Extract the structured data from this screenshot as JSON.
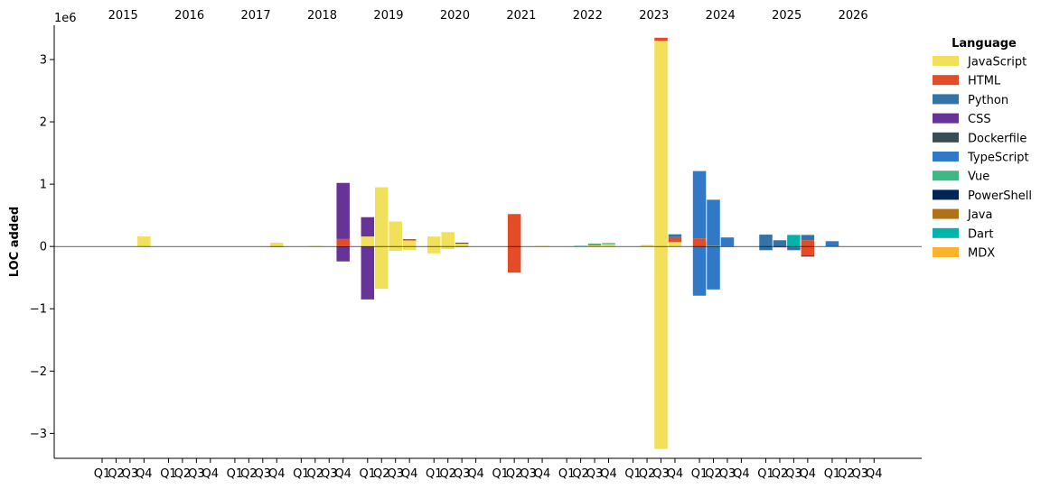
{
  "chart_data": {
    "type": "bar",
    "stacked": true,
    "diverging": true,
    "title": "",
    "xlabel": "",
    "ylabel": "LOC added",
    "y_offset_label": "1e6",
    "ylim": [
      -3400000,
      3550000
    ],
    "yticks": [
      -3000000,
      -2000000,
      -1000000,
      0,
      1000000,
      2000000,
      3000000
    ],
    "ytick_labels": [
      "−3",
      "−2",
      "−1",
      "0",
      "1",
      "2",
      "3"
    ],
    "years": [
      "2015",
      "2016",
      "2017",
      "2018",
      "2019",
      "2020",
      "2021",
      "2022",
      "2023",
      "2024",
      "2025",
      "2026"
    ],
    "quarters": [
      "Q1",
      "Q2",
      "Q3",
      "Q4"
    ],
    "legend": {
      "title": "Language",
      "position": "right",
      "entries": [
        "JavaScript",
        "HTML",
        "Python",
        "CSS",
        "Dockerfile",
        "TypeScript",
        "Vue",
        "PowerShell",
        "Java",
        "Dart",
        "MDX"
      ]
    },
    "colors": {
      "JavaScript": "#f1e05a",
      "HTML": "#e34c26",
      "Python": "#3572a5",
      "CSS": "#663399",
      "Dockerfile": "#384d54",
      "TypeScript": "#3178c6",
      "Vue": "#41b883",
      "PowerShell": "#012456",
      "Java": "#b07219",
      "Dart": "#00b4ab",
      "MDX": "#fcb32c"
    },
    "bars": [
      {
        "period": "2015 Q4",
        "pos": [
          [
            "JavaScript",
            160000
          ]
        ],
        "neg": []
      },
      {
        "period": "2017 Q4",
        "pos": [
          [
            "JavaScript",
            60000
          ]
        ],
        "neg": [
          [
            "JavaScript",
            8000
          ]
        ]
      },
      {
        "period": "2018 Q2",
        "pos": [
          [
            "JavaScript",
            8000
          ]
        ],
        "neg": []
      },
      {
        "period": "2018 Q4",
        "pos": [
          [
            "JavaScript",
            5000
          ],
          [
            "HTML",
            115000
          ],
          [
            "CSS",
            900000
          ]
        ],
        "neg": [
          [
            "CSS",
            240000
          ]
        ]
      },
      {
        "period": "2019 Q1",
        "pos": [
          [
            "JavaScript",
            160000
          ],
          [
            "CSS",
            310000
          ]
        ],
        "neg": [
          [
            "CSS",
            850000
          ]
        ]
      },
      {
        "period": "2019 Q2",
        "pos": [
          [
            "JavaScript",
            950000
          ]
        ],
        "neg": [
          [
            "JavaScript",
            680000
          ]
        ]
      },
      {
        "period": "2019 Q3",
        "pos": [
          [
            "JavaScript",
            400000
          ]
        ],
        "neg": [
          [
            "JavaScript",
            70000
          ]
        ]
      },
      {
        "period": "2019 Q4",
        "pos": [
          [
            "JavaScript",
            100000
          ],
          [
            "HTML",
            8000
          ],
          [
            "CSS",
            8000
          ]
        ],
        "neg": [
          [
            "JavaScript",
            60000
          ]
        ]
      },
      {
        "period": "2020 Q1",
        "pos": [
          [
            "JavaScript",
            160000
          ]
        ],
        "neg": [
          [
            "JavaScript",
            110000
          ]
        ]
      },
      {
        "period": "2020 Q2",
        "pos": [
          [
            "JavaScript",
            230000
          ]
        ],
        "neg": [
          [
            "JavaScript",
            40000
          ]
        ]
      },
      {
        "period": "2020 Q3",
        "pos": [
          [
            "JavaScript",
            45000
          ],
          [
            "Dockerfile",
            15000
          ]
        ],
        "neg": [
          [
            "JavaScript",
            5000
          ]
        ]
      },
      {
        "period": "2021 Q2",
        "pos": [
          [
            "HTML",
            520000
          ]
        ],
        "neg": [
          [
            "HTML",
            420000
          ]
        ]
      },
      {
        "period": "2021 Q4",
        "pos": [
          [
            "JavaScript",
            10000
          ]
        ],
        "neg": []
      },
      {
        "period": "2022 Q2",
        "pos": [
          [
            "Vue",
            10000
          ]
        ],
        "neg": []
      },
      {
        "period": "2022 Q3",
        "pos": [
          [
            "JavaScript",
            20000
          ],
          [
            "HTML",
            20000
          ],
          [
            "Vue",
            5000
          ]
        ],
        "neg": []
      },
      {
        "period": "2022 Q4",
        "pos": [
          [
            "JavaScript",
            35000
          ],
          [
            "Vue",
            20000
          ]
        ],
        "neg": []
      },
      {
        "period": "2023 Q2",
        "pos": [
          [
            "JavaScript",
            25000
          ]
        ],
        "neg": []
      },
      {
        "period": "2023 Q3",
        "pos": [
          [
            "JavaScript",
            3300000
          ],
          [
            "HTML",
            50000
          ]
        ],
        "neg": [
          [
            "JavaScript",
            3250000
          ]
        ]
      },
      {
        "period": "2023 Q4",
        "pos": [
          [
            "JavaScript",
            70000
          ],
          [
            "HTML",
            80000
          ],
          [
            "Python",
            45000
          ]
        ],
        "neg": []
      },
      {
        "period": "2024 Q1",
        "pos": [
          [
            "HTML",
            130000
          ],
          [
            "TypeScript",
            1080000
          ]
        ],
        "neg": [
          [
            "TypeScript",
            790000
          ]
        ]
      },
      {
        "period": "2024 Q2",
        "pos": [
          [
            "JavaScript",
            10000
          ],
          [
            "TypeScript",
            740000
          ]
        ],
        "neg": [
          [
            "TypeScript",
            690000
          ]
        ]
      },
      {
        "period": "2024 Q3",
        "pos": [
          [
            "Python",
            5000
          ],
          [
            "TypeScript",
            140000
          ]
        ],
        "neg": []
      },
      {
        "period": "2025 Q1",
        "pos": [
          [
            "Python",
            190000
          ]
        ],
        "neg": [
          [
            "Python",
            60000
          ]
        ]
      },
      {
        "period": "2025 Q2",
        "pos": [
          [
            "Python",
            100000
          ]
        ],
        "neg": [
          [
            "HTML",
            15000
          ]
        ]
      },
      {
        "period": "2025 Q3",
        "pos": [
          [
            "Dart",
            185000
          ]
        ],
        "neg": [
          [
            "Python",
            60000
          ]
        ]
      },
      {
        "period": "2025 Q4",
        "pos": [
          [
            "HTML",
            100000
          ],
          [
            "Python",
            85000
          ]
        ],
        "neg": [
          [
            "HTML",
            150000
          ],
          [
            "PowerShell",
            10000
          ]
        ]
      },
      {
        "period": "2026 Q1",
        "pos": [
          [
            "TypeScript",
            85000
          ]
        ],
        "neg": []
      }
    ]
  }
}
